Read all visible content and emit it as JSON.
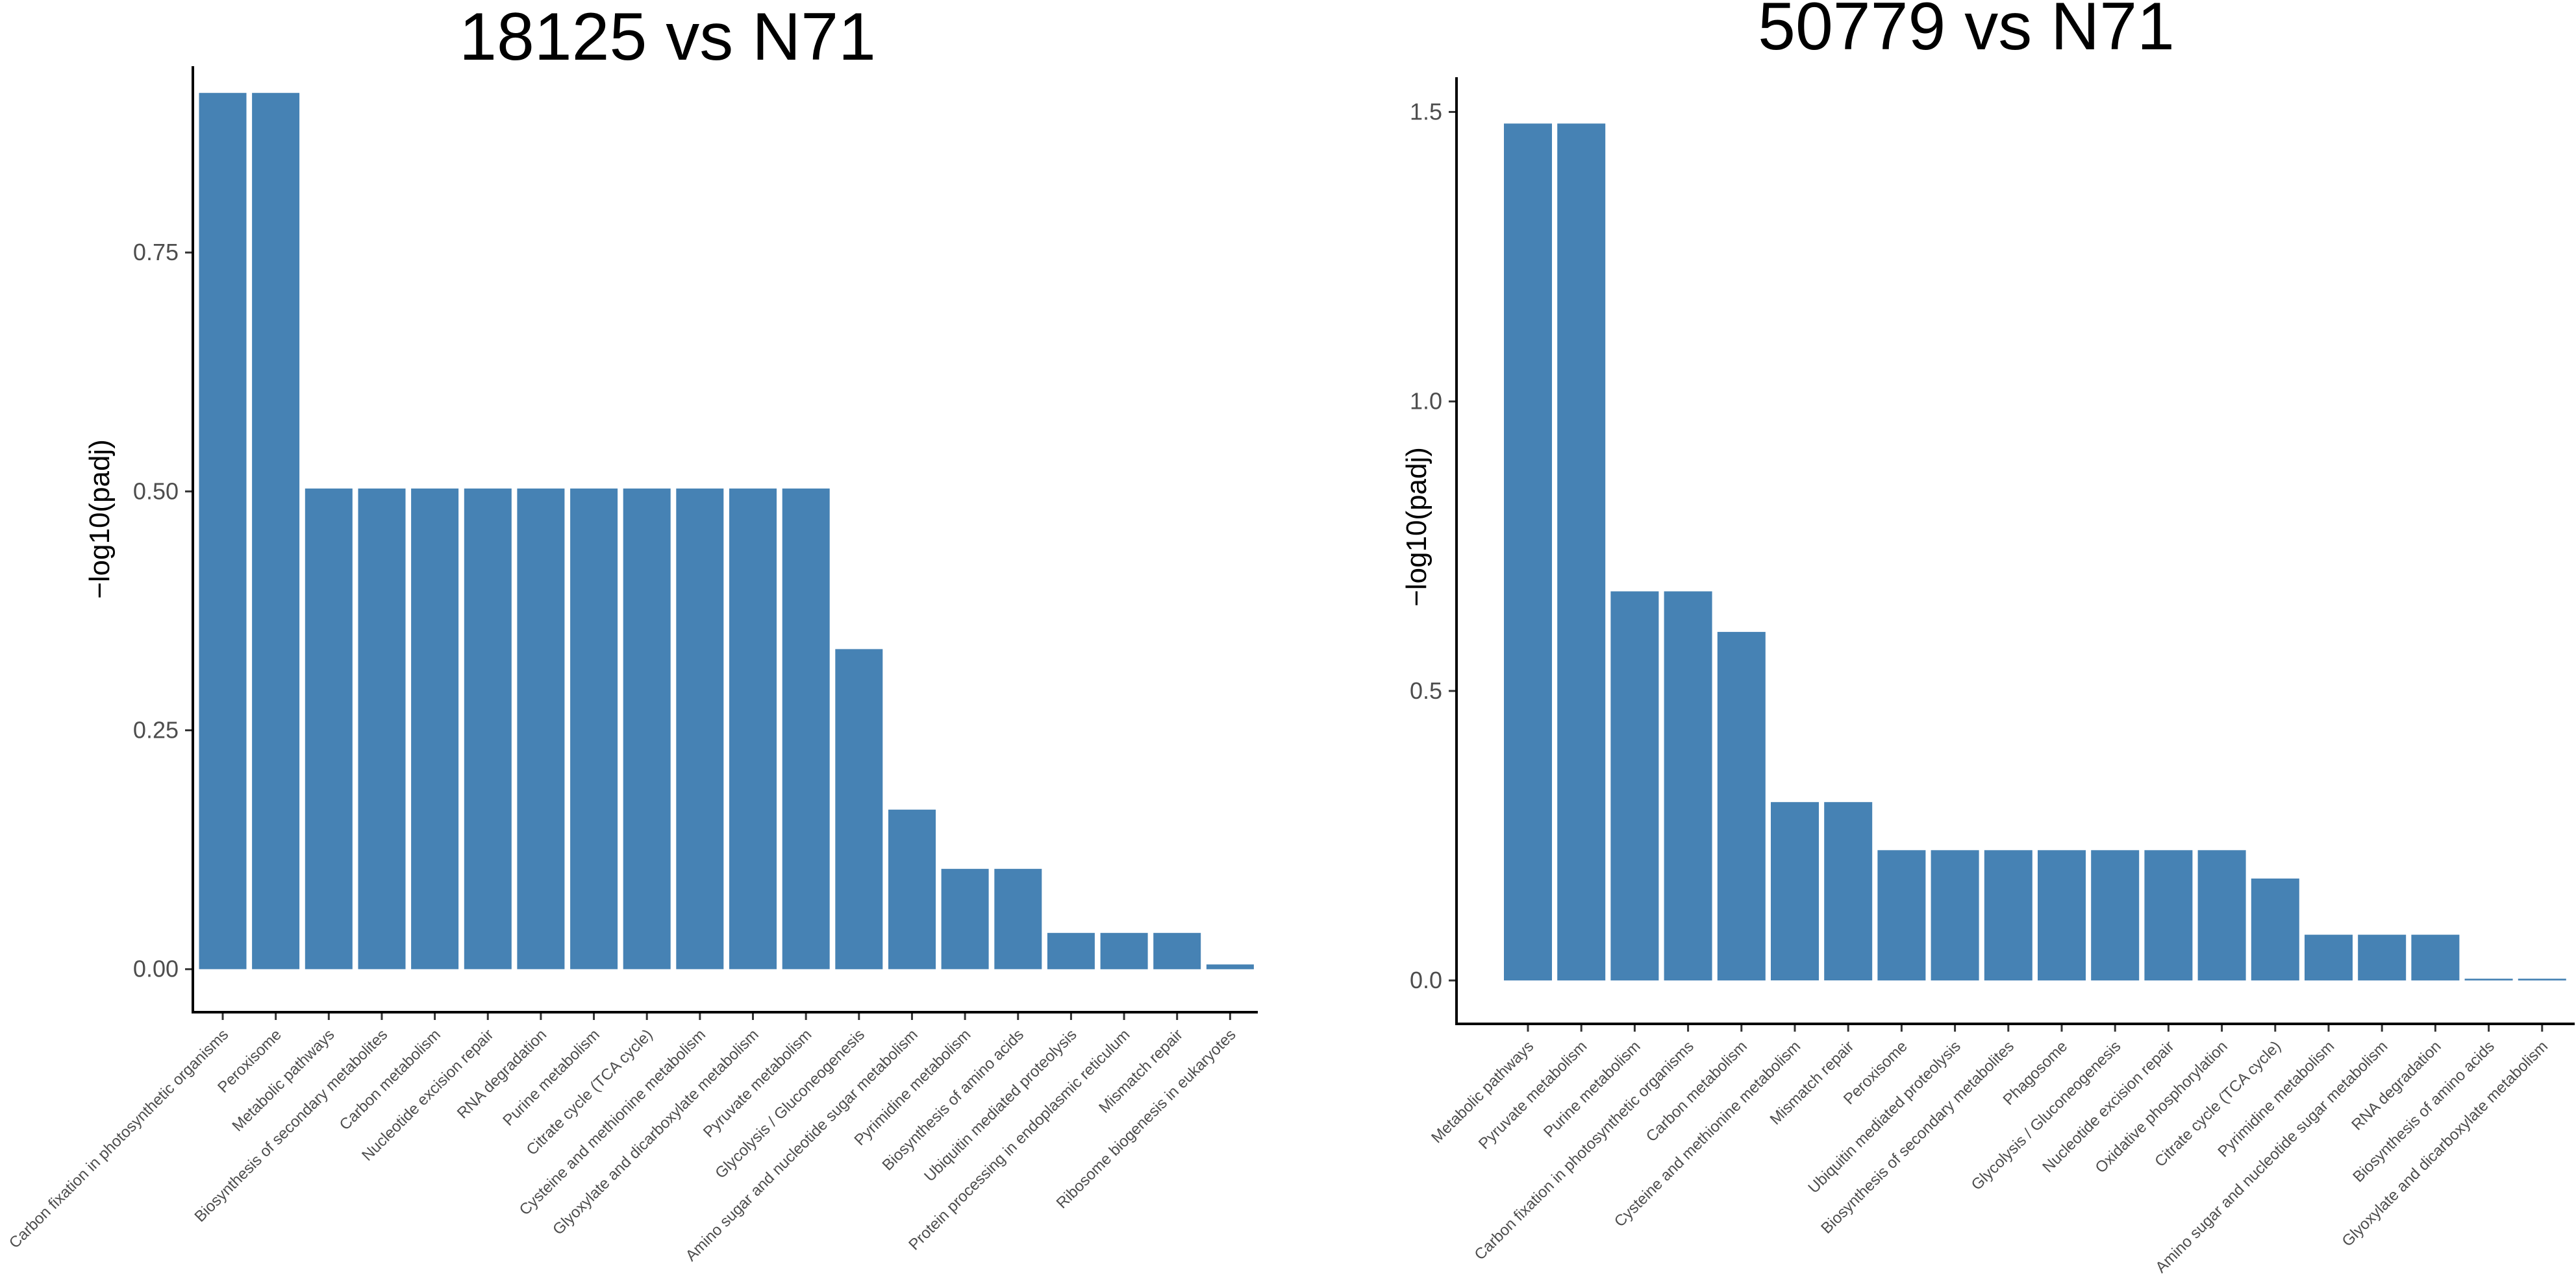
{
  "chart_data": [
    {
      "type": "bar",
      "title": "18125 vs N71",
      "xlabel": "",
      "ylabel": "−log10(padj)",
      "ylim": [
        -0.045,
        0.945
      ],
      "yticks": [
        0.0,
        0.25,
        0.5,
        0.75
      ],
      "ytick_labels": [
        "0.00",
        "0.25",
        "0.50",
        "0.75"
      ],
      "bar_color": "#4682b4",
      "categories": [
        "Carbon fixation in photosynthetic organisms",
        "Peroxisome",
        "Metabolic pathways",
        "Biosynthesis of secondary metabolites",
        "Carbon metabolism",
        "Nucleotide excision repair",
        "RNA degradation",
        "Purine metabolism",
        "Citrate cycle (TCA cycle)",
        "Cysteine and methionine metabolism",
        "Glyoxylate and dicarboxylate metabolism",
        "Pyruvate metabolism",
        "Glycolysis / Gluconeogenesis",
        "Amino sugar and nucleotide sugar metabolism",
        "Pyrimidine metabolism",
        "Biosynthesis of amino acids",
        "Ubiquitin mediated proteolysis",
        "Protein processing in endoplasmic reticulum",
        "Mismatch repair",
        "Ribosome biogenesis in eukaryotes"
      ],
      "values": [
        0.917,
        0.917,
        0.503,
        0.503,
        0.503,
        0.503,
        0.503,
        0.503,
        0.503,
        0.503,
        0.503,
        0.503,
        0.335,
        0.167,
        0.105,
        0.105,
        0.038,
        0.038,
        0.038,
        0.005
      ],
      "grid": false
    },
    {
      "type": "bar",
      "title": "50779 vs N71",
      "xlabel": "",
      "ylabel": "−log10(padj)",
      "ylim": [
        -0.075,
        1.56
      ],
      "yticks": [
        0.0,
        0.5,
        1.0,
        1.5
      ],
      "ytick_labels": [
        "0.0",
        "0.5",
        "1.0",
        "1.5"
      ],
      "bar_color": "#4682b4",
      "categories": [
        "Metabolic pathways",
        "Pyruvate metabolism",
        "Purine metabolism",
        "Carbon fixation in photosynthetic organisms",
        "Carbon metabolism",
        "Cysteine and methionine metabolism",
        "Mismatch repair",
        "Peroxisome",
        "Ubiquitin mediated proteolysis",
        "Biosynthesis of secondary metabolites",
        "Phagosome",
        "Glycolysis / Gluconeogenesis",
        "Nucleotide excision repair",
        "Oxidative phosphorylation",
        "Citrate cycle (TCA cycle)",
        "Pyrimidine metabolism",
        "Amino sugar and nucleotide sugar metabolism",
        "RNA degradation",
        "Biosynthesis of amino acids",
        "Glyoxylate and dicarboxylate metabolism"
      ],
      "values": [
        1.48,
        1.48,
        0.672,
        0.672,
        0.602,
        0.308,
        0.308,
        0.225,
        0.225,
        0.225,
        0.225,
        0.225,
        0.225,
        0.225,
        0.176,
        0.079,
        0.079,
        0.079,
        0.003,
        0.003
      ],
      "grid": false
    }
  ]
}
